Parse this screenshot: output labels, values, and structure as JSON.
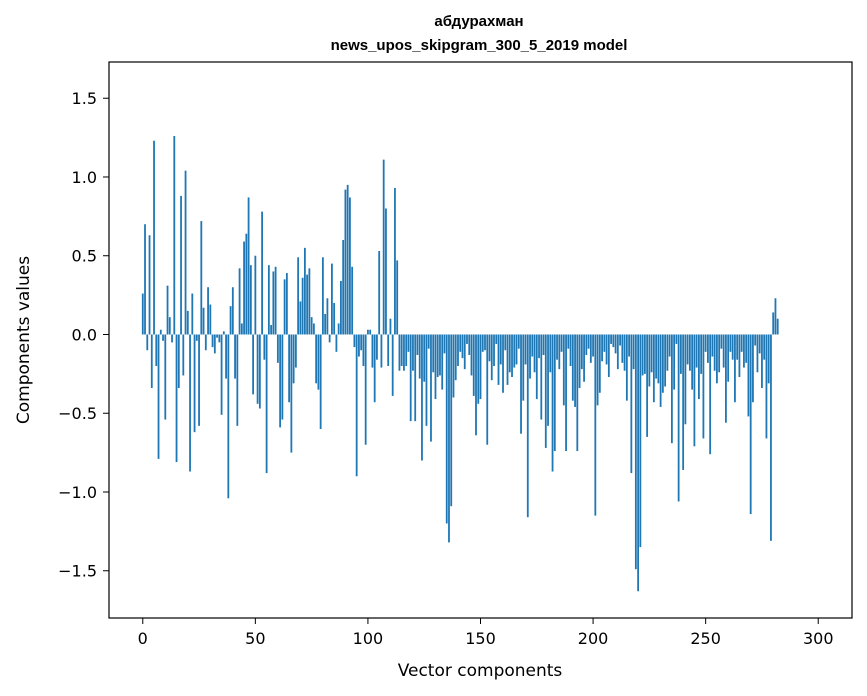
{
  "chart_data": {
    "type": "bar",
    "title": "абдурахман",
    "subtitle": "news_upos_skipgram_300_5_2019 model",
    "xlabel": "Vector components",
    "ylabel": "Components values",
    "xlim": [
      -15,
      315
    ],
    "ylim": [
      -1.8,
      1.73
    ],
    "xticks": [
      0,
      50,
      100,
      150,
      200,
      250,
      300
    ],
    "xtick_labels": [
      "0",
      "50",
      "100",
      "150",
      "200",
      "250",
      "300"
    ],
    "yticks": [
      -1.5,
      -1.0,
      -0.5,
      0.0,
      0.5,
      1.0,
      1.5
    ],
    "ytick_labels": [
      "−1.5",
      "−1.0",
      "−0.5",
      "0.0",
      "0.5",
      "1.0",
      "1.5"
    ],
    "bar_color": "#1f77b4",
    "grid": false,
    "values": [
      0.26,
      0.7,
      -0.1,
      0.63,
      -0.34,
      1.23,
      -0.2,
      -0.79,
      0.03,
      -0.04,
      -0.54,
      0.31,
      0.11,
      -0.05,
      1.26,
      -0.81,
      -0.34,
      0.88,
      -0.26,
      1.04,
      0.15,
      -0.87,
      0.26,
      -0.62,
      -0.04,
      -0.58,
      0.72,
      0.17,
      -0.1,
      0.3,
      0.19,
      -0.08,
      -0.12,
      -0.02,
      -0.05,
      -0.51,
      0.02,
      -0.28,
      -1.04,
      0.18,
      0.3,
      -0.28,
      -0.58,
      0.42,
      0.07,
      0.59,
      0.64,
      0.87,
      0.44,
      -0.38,
      0.5,
      -0.44,
      -0.47,
      0.78,
      -0.16,
      -0.88,
      0.44,
      0.06,
      0.4,
      0.43,
      -0.18,
      -0.59,
      -0.54,
      0.35,
      0.39,
      -0.43,
      -0.75,
      -0.31,
      -0.21,
      0.49,
      0.21,
      0.36,
      0.55,
      0.38,
      0.42,
      0.11,
      0.07,
      -0.31,
      -0.35,
      -0.6,
      0.49,
      0.13,
      0.23,
      -0.05,
      0.45,
      0.2,
      -0.11,
      0.07,
      0.34,
      0.6,
      0.92,
      0.95,
      0.87,
      0.43,
      -0.08,
      -0.9,
      -0.14,
      -0.1,
      -0.2,
      -0.7,
      0.03,
      0.03,
      -0.21,
      -0.43,
      -0.16,
      0.53,
      -0.21,
      1.11,
      0.8,
      -0.2,
      0.1,
      -0.39,
      0.93,
      0.47,
      -0.23,
      -0.2,
      -0.23,
      -0.2,
      -0.11,
      -0.55,
      -0.23,
      -0.55,
      -0.13,
      -0.28,
      -0.8,
      -0.3,
      -0.58,
      -0.09,
      -0.68,
      -0.24,
      -0.41,
      -0.27,
      -0.26,
      -0.35,
      -0.12,
      -1.2,
      -1.32,
      -1.09,
      -0.4,
      -0.29,
      -0.2,
      -0.11,
      -0.15,
      -0.22,
      -0.06,
      -0.13,
      -0.26,
      -0.39,
      -0.64,
      -0.44,
      -0.41,
      -0.11,
      -0.1,
      -0.7,
      -0.17,
      -0.29,
      -0.2,
      -0.06,
      -0.32,
      -0.19,
      -0.37,
      -0.1,
      -0.32,
      -0.24,
      -0.27,
      -0.21,
      -0.19,
      -0.09,
      -0.63,
      -0.42,
      -0.19,
      -1.16,
      -0.28,
      -0.14,
      -0.24,
      -0.41,
      -0.15,
      -0.54,
      -0.13,
      -0.72,
      -0.58,
      -0.24,
      -0.87,
      -0.74,
      -0.16,
      -0.22,
      -0.11,
      -0.45,
      -0.74,
      -0.09,
      -0.2,
      -0.42,
      -0.46,
      -0.74,
      -0.34,
      -0.22,
      -0.3,
      -0.13,
      -0.09,
      -0.18,
      -0.14,
      -1.15,
      -0.45,
      -0.37,
      -0.17,
      -0.11,
      -0.19,
      -0.27,
      -0.06,
      -0.08,
      -0.12,
      -0.22,
      -0.07,
      -0.18,
      -0.23,
      -0.42,
      -0.14,
      -0.88,
      -0.22,
      -1.49,
      -1.63,
      -1.35,
      -0.26,
      -0.25,
      -0.65,
      -0.33,
      -0.24,
      -0.43,
      -0.28,
      -0.31,
      -0.46,
      -0.37,
      -0.33,
      -0.23,
      -0.14,
      -0.69,
      -0.35,
      -0.06,
      -1.06,
      -0.25,
      -0.86,
      -0.57,
      -0.19,
      -0.23,
      -0.35,
      -0.71,
      -0.21,
      -0.41,
      -0.25,
      -0.66,
      -0.11,
      -0.18,
      -0.76,
      -0.14,
      -0.23,
      -0.31,
      -0.24,
      -0.09,
      -0.21,
      -0.56,
      -0.3,
      -0.11,
      -0.16,
      -0.43,
      -0.16,
      -0.27,
      -0.11,
      -0.21,
      -0.18,
      -0.52,
      -1.14,
      -0.43,
      -0.07,
      -0.24,
      -0.12,
      -0.34,
      -0.16,
      -0.66,
      -0.31,
      -1.31,
      0.14,
      0.23,
      0.1
    ]
  }
}
